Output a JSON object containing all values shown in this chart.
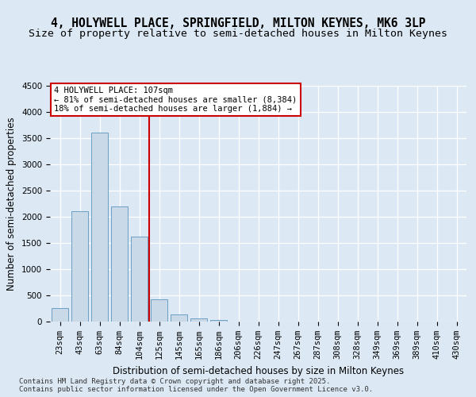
{
  "title_line1": "4, HOLYWELL PLACE, SPRINGFIELD, MILTON KEYNES, MK6 3LP",
  "title_line2": "Size of property relative to semi-detached houses in Milton Keynes",
  "xlabel": "Distribution of semi-detached houses by size in Milton Keynes",
  "ylabel": "Number of semi-detached properties",
  "categories": [
    "23sqm",
    "43sqm",
    "63sqm",
    "84sqm",
    "104sqm",
    "125sqm",
    "145sqm",
    "165sqm",
    "186sqm",
    "206sqm",
    "226sqm",
    "247sqm",
    "267sqm",
    "287sqm",
    "308sqm",
    "328sqm",
    "349sqm",
    "369sqm",
    "389sqm",
    "410sqm",
    "430sqm"
  ],
  "values": [
    250,
    2100,
    3600,
    2200,
    1620,
    430,
    140,
    60,
    30,
    0,
    0,
    0,
    0,
    0,
    0,
    0,
    0,
    0,
    0,
    0,
    0
  ],
  "bar_color": "#c9d9e8",
  "bar_edge_color": "#6a9ec4",
  "vline_x": 4.5,
  "vline_color": "#cc0000",
  "annotation_text": "4 HOLYWELL PLACE: 107sqm\n← 81% of semi-detached houses are smaller (8,384)\n18% of semi-detached houses are larger (1,884) →",
  "annotation_box_edge_color": "#cc0000",
  "ylim": [
    0,
    4500
  ],
  "yticks": [
    0,
    500,
    1000,
    1500,
    2000,
    2500,
    3000,
    3500,
    4000,
    4500
  ],
  "background_color": "#dce9f5",
  "grid_color": "#ffffff",
  "footer_text": "Contains HM Land Registry data © Crown copyright and database right 2025.\nContains public sector information licensed under the Open Government Licence v3.0.",
  "title_fontsize": 10.5,
  "subtitle_fontsize": 9.5,
  "label_fontsize": 8.5,
  "tick_fontsize": 7.5,
  "footer_fontsize": 6.5
}
